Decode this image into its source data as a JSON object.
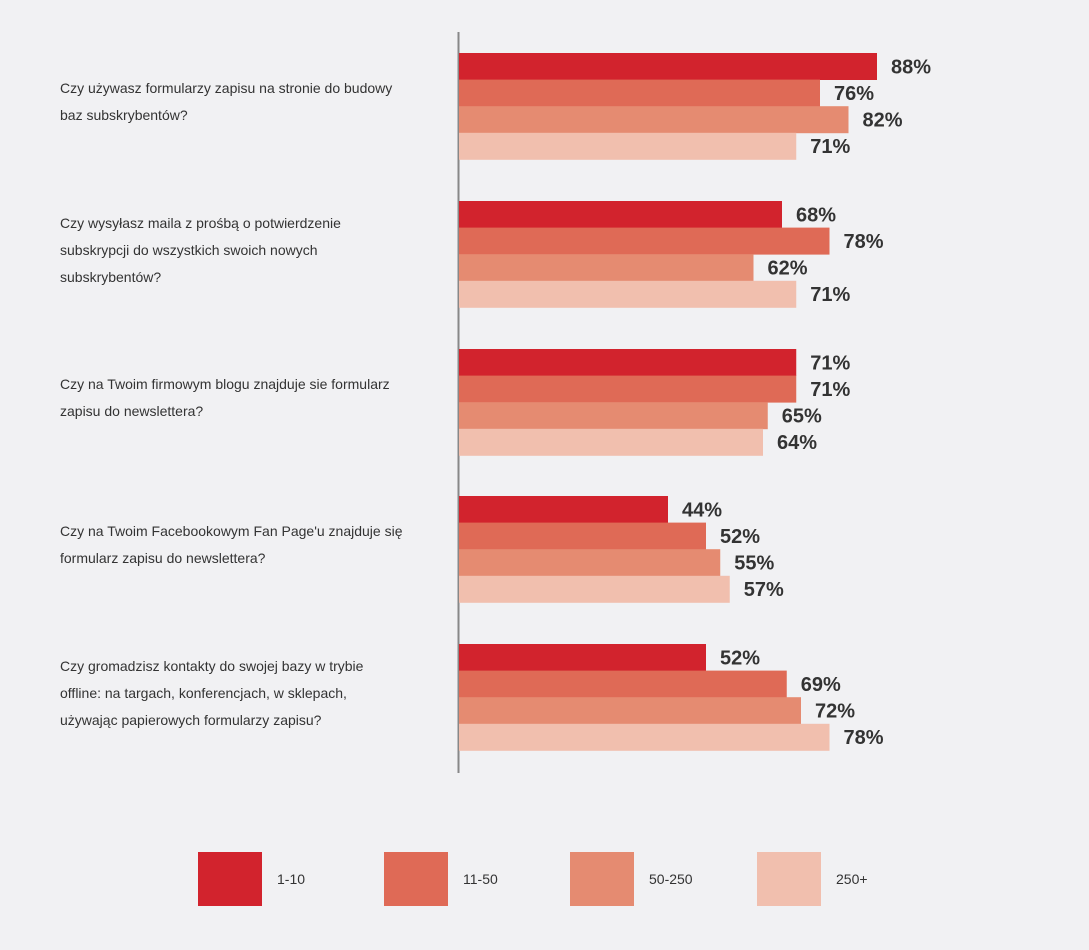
{
  "chart_data": {
    "type": "bar",
    "orientation": "horizontal",
    "categories": [
      "Czy używasz formularzy zapisu na stronie do budowy baz subskrybentów?",
      "Czy wysyłasz maila z prośbą o potwierdzenie subskrypcji do wszystkich swoich nowych subskrybentów?",
      "Czy na Twoim firmowym blogu znajduje sie formularz zapisu do newslettera?",
      "Czy na Twoim Facebookowym Fan Page'u znajduje się formularz zapisu do newslettera?",
      "Czy gromadzisz kontakty do swojej bazy w trybie offline: na targach, konferencjach, w sklepach, używając papierowych formularzy zapisu?"
    ],
    "question_lines": [
      [
        "Czy używasz formularzy zapisu na stronie do budowy",
        "baz subskrybentów?"
      ],
      [
        "Czy wysyłasz maila z prośbą o potwierdzenie",
        "subskrypcji do wszystkich swoich nowych",
        "subskrybentów?"
      ],
      [
        "Czy na Twoim firmowym blogu znajduje sie formularz",
        "zapisu do newslettera?"
      ],
      [
        "Czy na Twoim Facebookowym Fan Page'u znajduje się",
        "formularz zapisu do newslettera?"
      ],
      [
        "Czy gromadzisz kontakty do swojej bazy w trybie",
        "offline: na targach, konferencjach, w sklepach,",
        "używając papierowych formularzy zapisu?"
      ]
    ],
    "series": [
      {
        "name": "1-10",
        "color": "#d2232d",
        "values": [
          88,
          68,
          71,
          44,
          52
        ]
      },
      {
        "name": "11-50",
        "color": "#df6a56",
        "values": [
          76,
          78,
          71,
          52,
          69
        ]
      },
      {
        "name": "50-250",
        "color": "#e58b71",
        "values": [
          82,
          62,
          65,
          55,
          72
        ]
      },
      {
        "name": "250+",
        "color": "#f1bfae",
        "values": [
          71,
          71,
          64,
          57,
          78
        ]
      }
    ],
    "value_suffix": "%",
    "xlim": [
      0,
      100
    ],
    "title": "",
    "xlabel": "",
    "ylabel": "",
    "grid": false,
    "legend_position": "bottom",
    "axis_color": "#888888",
    "label_color": "#333333"
  }
}
